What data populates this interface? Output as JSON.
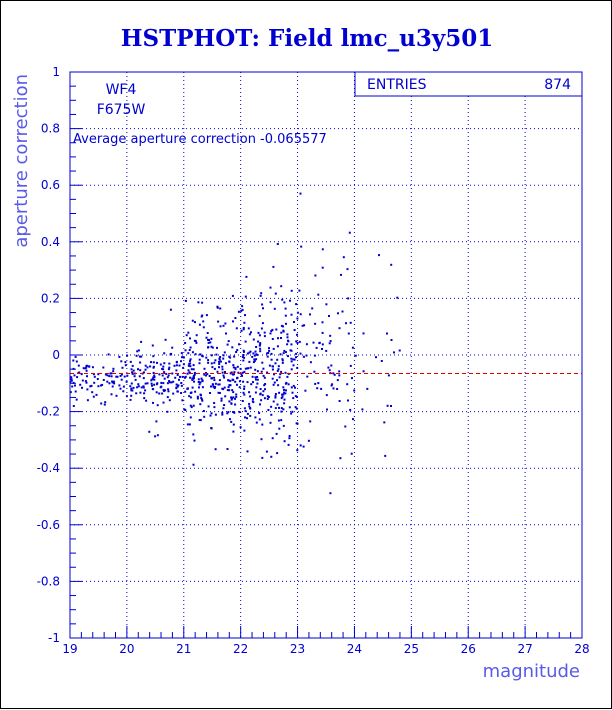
{
  "title": "HSTPHOT: Field lmc_u3y501",
  "chart_data": {
    "type": "scatter",
    "title": "HSTPHOT: Field lmc_u3y501",
    "xlabel": "magnitude",
    "ylabel": "aperture correction",
    "xlim": [
      19,
      28
    ],
    "ylim": [
      -1,
      1
    ],
    "x_ticks": [
      "19",
      "20",
      "21",
      "22",
      "23",
      "24",
      "25",
      "26",
      "27",
      "28"
    ],
    "y_ticks": [
      "-1",
      "-0.8",
      "-0.6",
      "-0.4",
      "-0.2",
      "0",
      "0.2",
      "0.4",
      "0.6",
      "0.8",
      "1"
    ],
    "grid": true,
    "chip_label": "WF4",
    "filter_label": "F675W",
    "note": "Average aperture correction -0.065577",
    "average_line_y": -0.065577,
    "stats": {
      "entries_label": "ENTRIES",
      "entries_value": "874"
    },
    "colors": {
      "axes": "#0000d0",
      "points": "#0000d0",
      "average_line": "#e00000",
      "title": "#0000d0",
      "axis_title": "#5a5ae8"
    },
    "point_distribution": {
      "total_entries": 874,
      "bins": [
        {
          "x": [
            19.0,
            20.0
          ],
          "y_mean": -0.085,
          "y_sigma": 0.045,
          "n": 90
        },
        {
          "x": [
            20.0,
            21.0
          ],
          "y_mean": -0.08,
          "y_sigma": 0.075,
          "n": 150
        },
        {
          "x": [
            21.0,
            22.0
          ],
          "y_mean": -0.07,
          "y_sigma": 0.12,
          "n": 260
        },
        {
          "x": [
            22.0,
            23.0
          ],
          "y_mean": -0.05,
          "y_sigma": 0.17,
          "n": 270
        },
        {
          "x": [
            23.0,
            24.0
          ],
          "y_mean": 0.0,
          "y_sigma": 0.25,
          "n": 85
        },
        {
          "x": [
            24.0,
            24.8
          ],
          "y_mean": 0.05,
          "y_sigma": 0.28,
          "n": 19
        }
      ]
    }
  }
}
